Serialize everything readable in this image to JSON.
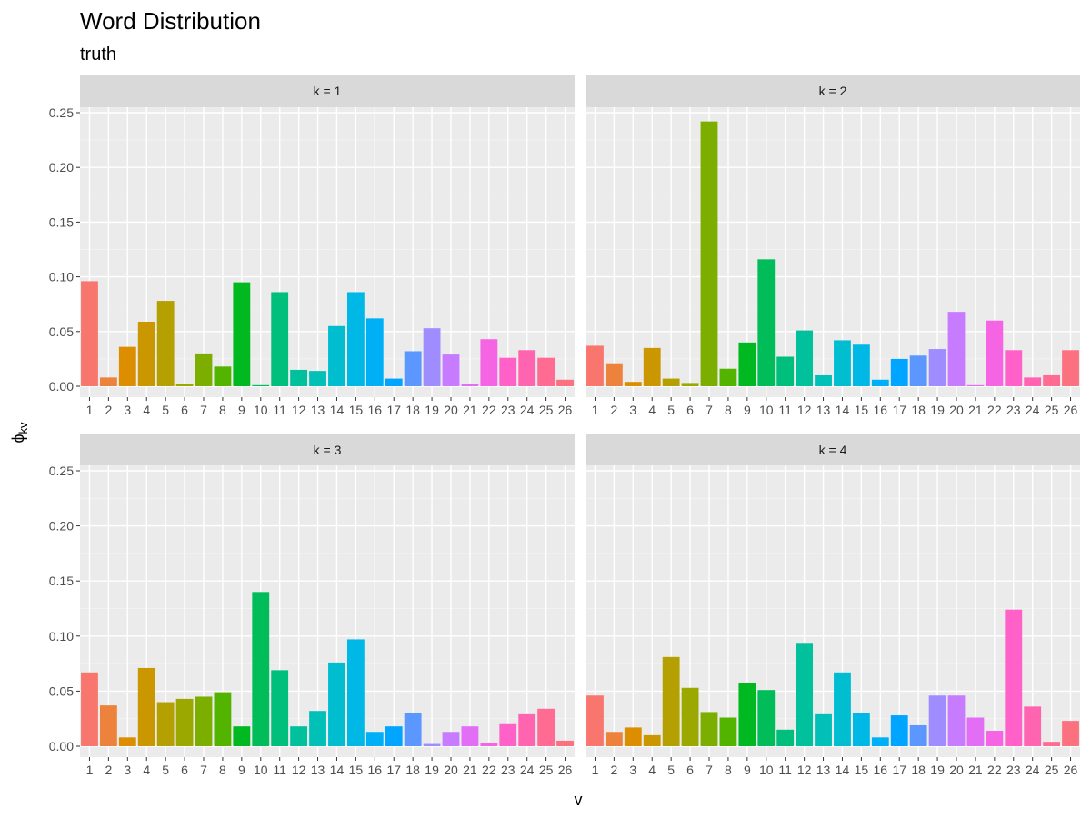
{
  "title": "Word Distribution",
  "subtitle": "truth",
  "chart_data": {
    "type": "bar",
    "title": "Word Distribution",
    "subtitle": "truth",
    "xlabel": "v",
    "ylabel_main": "ϕ",
    "ylabel_sub": "kv",
    "ylim": [
      0,
      0.25
    ],
    "y_ticks": [
      "0.00",
      "0.05",
      "0.10",
      "0.15",
      "0.20",
      "0.25"
    ],
    "y_tick_values": [
      0,
      0.05,
      0.1,
      0.15,
      0.2,
      0.25
    ],
    "grid": true,
    "legend": "none",
    "categories": [
      "1",
      "2",
      "3",
      "4",
      "5",
      "6",
      "7",
      "8",
      "9",
      "10",
      "11",
      "12",
      "13",
      "14",
      "15",
      "16",
      "17",
      "18",
      "19",
      "20",
      "21",
      "22",
      "23",
      "24",
      "25",
      "26"
    ],
    "colors": [
      "#F8766D",
      "#EC823C",
      "#DD8D00",
      "#CA9700",
      "#B4A000",
      "#9AA800",
      "#7CAE00",
      "#53B400",
      "#00B81F",
      "#00BC59",
      "#00BF7D",
      "#00C19C",
      "#00C0B7",
      "#00BDD0",
      "#00B8E5",
      "#00B0F6",
      "#00A5FF",
      "#5B97FF",
      "#9F8CFF",
      "#C77CFF",
      "#E36EF6",
      "#F564E3",
      "#FF61C9",
      "#FF64B0",
      "#FF6B93",
      "#FC7180"
    ],
    "panels": [
      {
        "label": "k = 1",
        "values": [
          0.096,
          0.008,
          0.036,
          0.059,
          0.078,
          0.002,
          0.03,
          0.018,
          0.095,
          0.001,
          0.086,
          0.015,
          0.014,
          0.055,
          0.086,
          0.062,
          0.007,
          0.032,
          0.053,
          0.029,
          0.002,
          0.043,
          0.026,
          0.033,
          0.026,
          0.006
        ]
      },
      {
        "label": "k = 2",
        "values": [
          0.037,
          0.021,
          0.004,
          0.035,
          0.007,
          0.003,
          0.242,
          0.016,
          0.04,
          0.116,
          0.027,
          0.051,
          0.01,
          0.042,
          0.038,
          0.006,
          0.025,
          0.028,
          0.034,
          0.068,
          0.001,
          0.06,
          0.033,
          0.008,
          0.01,
          0.033
        ]
      },
      {
        "label": "k = 3",
        "values": [
          0.067,
          0.037,
          0.008,
          0.071,
          0.04,
          0.043,
          0.045,
          0.049,
          0.018,
          0.14,
          0.069,
          0.018,
          0.032,
          0.076,
          0.097,
          0.013,
          0.018,
          0.03,
          0.002,
          0.013,
          0.018,
          0.003,
          0.02,
          0.029,
          0.034,
          0.005
        ]
      },
      {
        "label": "k = 4",
        "values": [
          0.046,
          0.013,
          0.017,
          0.01,
          0.081,
          0.053,
          0.031,
          0.026,
          0.057,
          0.051,
          0.015,
          0.093,
          0.029,
          0.067,
          0.03,
          0.008,
          0.028,
          0.019,
          0.046,
          0.046,
          0.026,
          0.014,
          0.124,
          0.036,
          0.004,
          0.023
        ]
      }
    ]
  }
}
